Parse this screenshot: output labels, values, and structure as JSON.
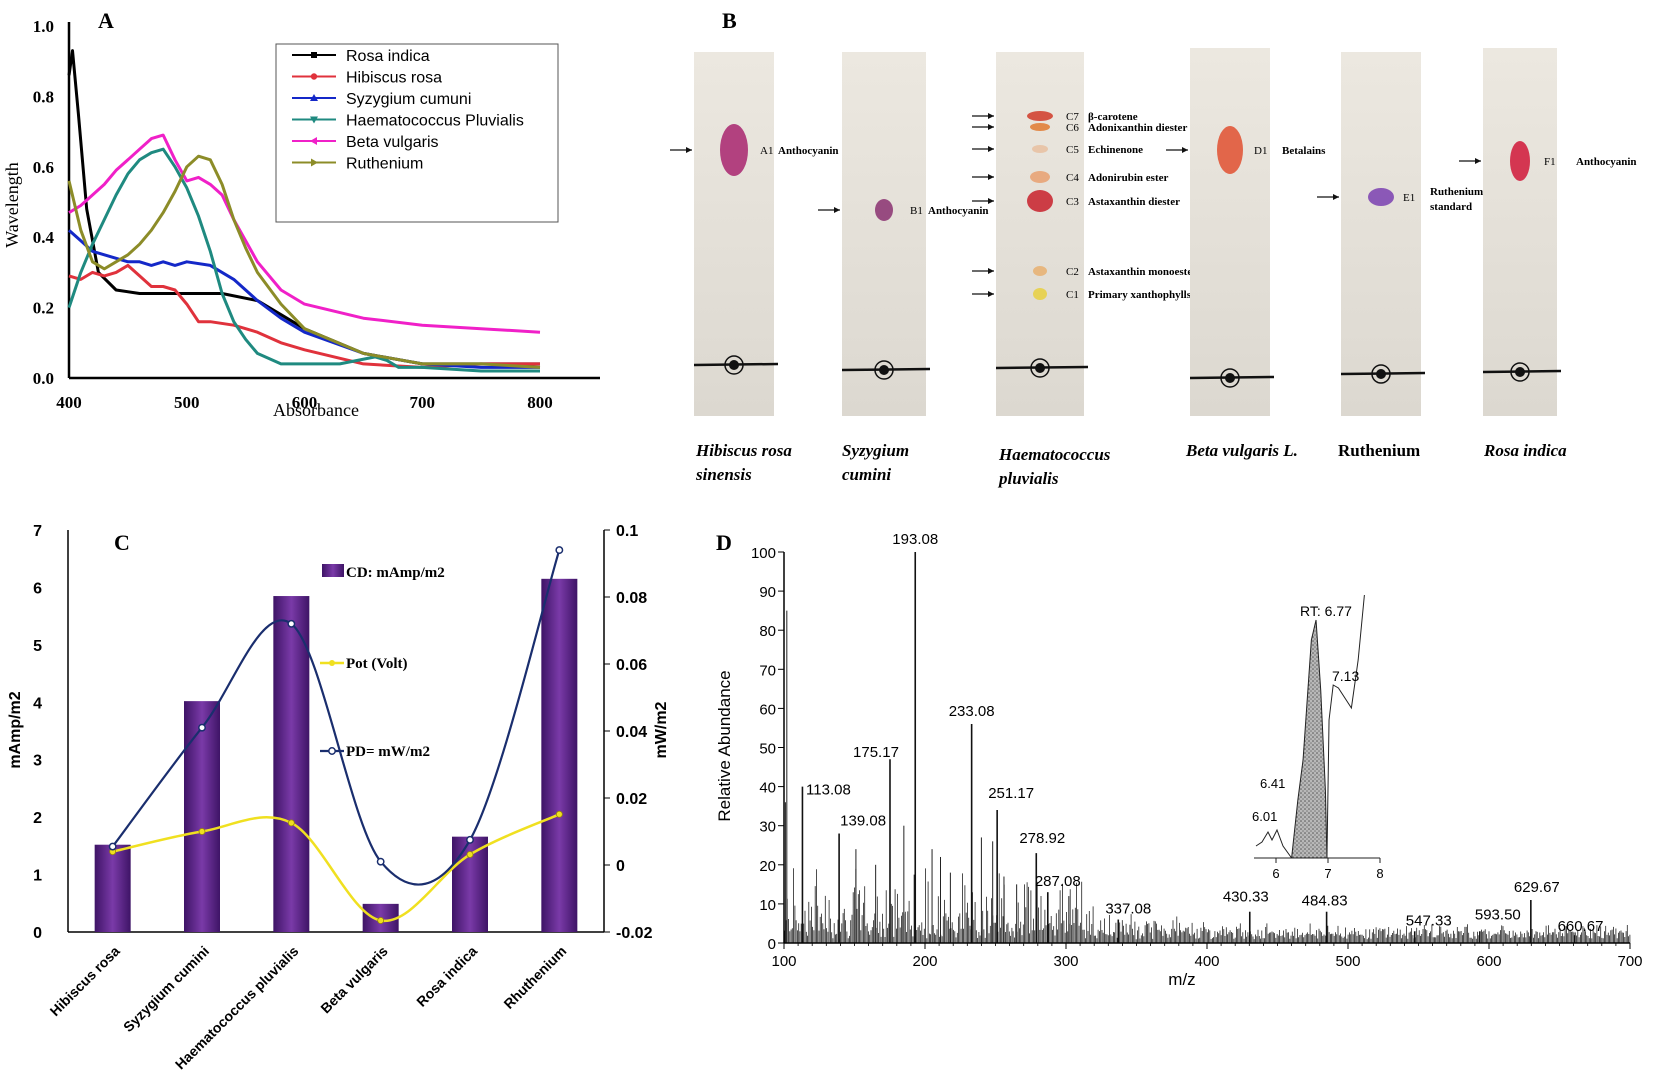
{
  "chart_data": [
    {
      "panel": "A",
      "type": "line",
      "xlabel": "Absorbance",
      "ylabel": "Wavelength",
      "xlim": [
        400,
        800
      ],
      "ylim": [
        0.0,
        1.0
      ],
      "xticks": [
        "400",
        "500",
        "600",
        "700",
        "800"
      ],
      "yticks": [
        "0.0",
        "0.2",
        "0.4",
        "0.6",
        "0.8",
        "1.0"
      ],
      "legend_position": "top-right",
      "series": [
        {
          "name": "Rosa indica",
          "color": "#000000",
          "x": [
            400,
            403,
            408,
            415,
            425,
            440,
            460,
            480,
            500,
            530,
            560,
            600,
            650,
            700,
            750,
            800
          ],
          "y": [
            0.86,
            0.93,
            0.75,
            0.48,
            0.3,
            0.25,
            0.24,
            0.24,
            0.24,
            0.24,
            0.22,
            0.14,
            0.07,
            0.04,
            0.04,
            0.04
          ]
        },
        {
          "name": "Hibiscus rosa",
          "color": "#e0323c",
          "x": [
            400,
            410,
            420,
            430,
            440,
            450,
            460,
            470,
            480,
            490,
            500,
            510,
            520,
            540,
            560,
            580,
            600,
            650,
            700,
            750,
            800
          ],
          "y": [
            0.29,
            0.28,
            0.3,
            0.29,
            0.3,
            0.32,
            0.29,
            0.26,
            0.26,
            0.25,
            0.21,
            0.16,
            0.16,
            0.15,
            0.13,
            0.1,
            0.08,
            0.04,
            0.03,
            0.04,
            0.04
          ]
        },
        {
          "name": "Syzygium cumuni",
          "color": "#1428c8",
          "x": [
            400,
            410,
            420,
            430,
            440,
            450,
            460,
            470,
            480,
            490,
            500,
            520,
            540,
            560,
            580,
            600,
            650,
            700,
            750,
            800
          ],
          "y": [
            0.42,
            0.39,
            0.36,
            0.35,
            0.34,
            0.33,
            0.33,
            0.32,
            0.33,
            0.32,
            0.33,
            0.32,
            0.28,
            0.22,
            0.17,
            0.13,
            0.07,
            0.04,
            0.03,
            0.03
          ]
        },
        {
          "name": "Haematococcus Pluvialis",
          "color": "#1f8a80",
          "x": [
            400,
            405,
            410,
            420,
            430,
            440,
            450,
            460,
            470,
            480,
            490,
            500,
            510,
            520,
            530,
            540,
            550,
            560,
            580,
            600,
            630,
            660,
            670,
            680,
            700,
            750,
            800
          ],
          "y": [
            0.2,
            0.25,
            0.3,
            0.38,
            0.45,
            0.52,
            0.58,
            0.62,
            0.64,
            0.65,
            0.6,
            0.54,
            0.46,
            0.36,
            0.24,
            0.16,
            0.11,
            0.07,
            0.04,
            0.04,
            0.04,
            0.06,
            0.05,
            0.03,
            0.03,
            0.02,
            0.02
          ]
        },
        {
          "name": "Beta vulgaris",
          "color": "#f020c8",
          "x": [
            400,
            410,
            420,
            430,
            440,
            450,
            460,
            470,
            480,
            490,
            500,
            510,
            520,
            530,
            540,
            560,
            580,
            600,
            650,
            700,
            750,
            800
          ],
          "y": [
            0.47,
            0.49,
            0.52,
            0.55,
            0.59,
            0.62,
            0.65,
            0.68,
            0.69,
            0.62,
            0.56,
            0.57,
            0.55,
            0.52,
            0.45,
            0.33,
            0.25,
            0.21,
            0.17,
            0.15,
            0.14,
            0.13
          ]
        },
        {
          "name": "Ruthenium",
          "color": "#8c8c28",
          "x": [
            400,
            410,
            420,
            430,
            440,
            450,
            460,
            470,
            480,
            490,
            500,
            510,
            520,
            530,
            540,
            550,
            560,
            580,
            600,
            650,
            700,
            750,
            800
          ],
          "y": [
            0.56,
            0.42,
            0.33,
            0.31,
            0.33,
            0.35,
            0.38,
            0.42,
            0.47,
            0.53,
            0.6,
            0.63,
            0.62,
            0.55,
            0.45,
            0.37,
            0.3,
            0.21,
            0.14,
            0.07,
            0.04,
            0.04,
            0.03
          ]
        }
      ]
    },
    {
      "panel": "C",
      "type": "bar",
      "categories": [
        "Hibiscus rosa",
        "Syzygium cumini",
        "Haematococcus pluvialis",
        "Beta vulgaris",
        "Rosa indica",
        "Rhuthenium"
      ],
      "ylabel": "mAmp/m2",
      "y2label": "mW/m2",
      "ylim": [
        0,
        7
      ],
      "y2lim": [
        -0.02,
        0.1
      ],
      "yticks": [
        "0",
        "1",
        "2",
        "3",
        "4",
        "5",
        "6",
        "7"
      ],
      "y2ticks": [
        "-0.02",
        "0",
        "0.02",
        "0.04",
        "0.06",
        "0.08",
        "0.1"
      ],
      "series": [
        {
          "name": "CD: mAmp/m2",
          "type": "bar",
          "color": "#6b2a9c",
          "values": [
            1.52,
            4.02,
            5.85,
            0.49,
            1.66,
            6.15
          ]
        },
        {
          "name": "Pot (Volt)",
          "type": "line",
          "axis": "left",
          "color": "#f0e020",
          "values": [
            1.4,
            1.75,
            1.9,
            0.2,
            1.35,
            2.05
          ]
        },
        {
          "name": "PD= mW/m2",
          "type": "line",
          "axis": "right",
          "color": "#1a2e6e",
          "values": [
            0.0055,
            0.041,
            0.072,
            0.001,
            0.0075,
            0.094
          ]
        }
      ]
    },
    {
      "panel": "D",
      "type": "bar",
      "xlabel": "m/z",
      "ylabel": "Relative Abundance",
      "xlim": [
        100,
        700
      ],
      "ylim": [
        0,
        100
      ],
      "xticks": [
        "100",
        "200",
        "300",
        "400",
        "500",
        "600",
        "700"
      ],
      "yticks": [
        "0",
        "10",
        "20",
        "30",
        "40",
        "50",
        "60",
        "70",
        "80",
        "90",
        "100"
      ],
      "peaks": [
        {
          "x": 113.08,
          "y": 40,
          "label": "113.08"
        },
        {
          "x": 139.08,
          "y": 28,
          "label": "139.08"
        },
        {
          "x": 175.17,
          "y": 47,
          "label": "175.17"
        },
        {
          "x": 193.08,
          "y": 100,
          "label": "193.08"
        },
        {
          "x": 233.08,
          "y": 56,
          "label": "233.08"
        },
        {
          "x": 251.17,
          "y": 34,
          "label": "251.17"
        },
        {
          "x": 278.92,
          "y": 23,
          "label": "278.92"
        },
        {
          "x": 287.08,
          "y": 13,
          "label": "287.08"
        },
        {
          "x": 337.08,
          "y": 6,
          "label": "337.08"
        },
        {
          "x": 430.33,
          "y": 8,
          "label": "430.33"
        },
        {
          "x": 484.83,
          "y": 8,
          "label": "484.83"
        },
        {
          "x": 547.33,
          "y": 3,
          "label": "547.33"
        },
        {
          "x": 593.5,
          "y": 3,
          "label": "593.50"
        },
        {
          "x": 629.67,
          "y": 11,
          "label": "629.67"
        },
        {
          "x": 660.67,
          "y": 2,
          "label": "660.67"
        }
      ],
      "inset": {
        "xticks": [
          "6",
          "7",
          "8"
        ],
        "labels": [
          "RT: 6.77",
          "7.13",
          "6.41",
          "6.01"
        ]
      }
    }
  ],
  "panels": {
    "a": {
      "letter": "A"
    },
    "b": {
      "letter": "B",
      "strips": [
        {
          "name": "Hibiscus rosa sinensis",
          "title_lines": [
            "Hibiscus rosa",
            "sinensis"
          ],
          "spots": [
            {
              "code": "A1",
              "label": "Anthocyanin",
              "color": "#a8246e"
            }
          ]
        },
        {
          "name": "Syzygium cumini",
          "title_lines": [
            "Syzygium",
            "cumini"
          ],
          "spots": [
            {
              "code": "B1",
              "label": "Anthocyanin",
              "color": "#8a3070"
            }
          ]
        },
        {
          "name": "Haematococcus pluvialis",
          "title_lines": [
            "Haematococcus",
            "pluvialis"
          ],
          "spots": [
            {
              "code": "C7",
              "label": "β-carotene",
              "color": "#d03a28"
            },
            {
              "code": "C6",
              "label": "Adonixanthin diester",
              "color": "#e07a30"
            },
            {
              "code": "C5",
              "label": "Echinenone",
              "color": "#e8c0a0"
            },
            {
              "code": "C4",
              "label": "Adonirubin ester",
              "color": "#e8a070"
            },
            {
              "code": "C3",
              "label": "Astaxanthin diester",
              "color": "#c8202a"
            },
            {
              "code": "C2",
              "label": "Astaxanthin monoester",
              "color": "#e8b070"
            },
            {
              "code": "C1",
              "label": "Primary xanthophylls",
              "color": "#e8d040"
            }
          ]
        },
        {
          "name": "Beta vulgaris L.",
          "title_lines": [
            "Beta vulgaris L."
          ],
          "spots": [
            {
              "code": "D1",
              "label": "Betalains",
              "color": "#e05030"
            }
          ]
        },
        {
          "name": "Ruthenium",
          "title_lines": [
            "Ruthenium"
          ],
          "spots": [
            {
              "code": "E1",
              "label": "Ruthenium standard",
              "label_lines": [
                "Ruthenium",
                "standard"
              ],
              "color": "#7a40b0"
            }
          ]
        },
        {
          "name": "Rosa indica",
          "title_lines": [
            "Rosa indica"
          ],
          "spots": [
            {
              "code": "F1",
              "label": "Anthocyanin",
              "color": "#d01838"
            }
          ]
        }
      ]
    },
    "c": {
      "letter": "C"
    },
    "d": {
      "letter": "D"
    }
  }
}
